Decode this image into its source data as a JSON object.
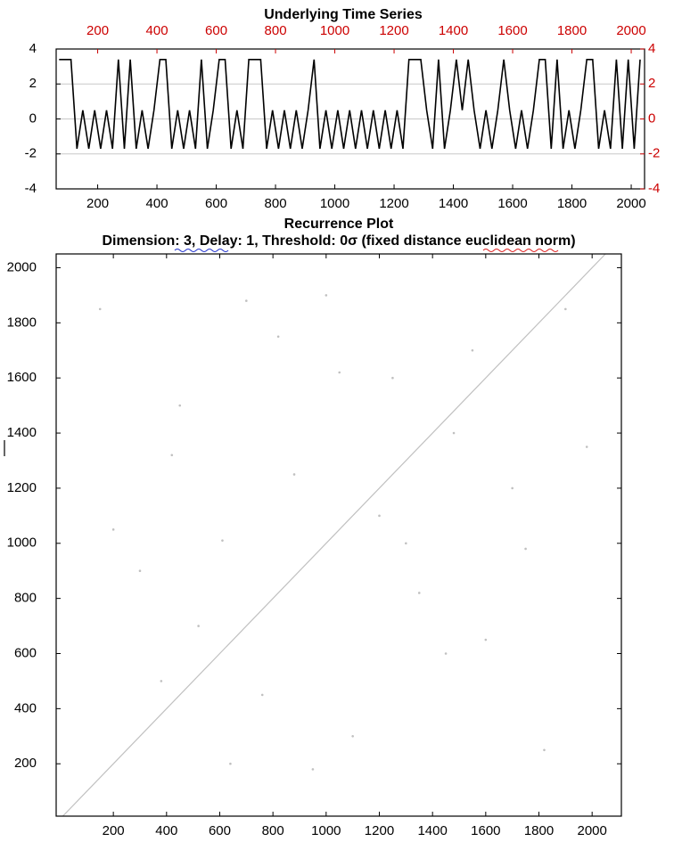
{
  "chart_data": [
    {
      "type": "line",
      "title": "Underlying Time Series",
      "color": "#000000",
      "grid": true,
      "grid_color": "#c8c8c8",
      "x": [
        70,
        90,
        110,
        130,
        150,
        170,
        190,
        210,
        230,
        250,
        270,
        290,
        310,
        330,
        350,
        370,
        390,
        410,
        430,
        450,
        470,
        490,
        510,
        530,
        550,
        570,
        590,
        610,
        630,
        650,
        670,
        690,
        710,
        730,
        750,
        770,
        790,
        810,
        830,
        850,
        870,
        890,
        910,
        930,
        950,
        970,
        990,
        1010,
        1030,
        1050,
        1070,
        1090,
        1110,
        1130,
        1150,
        1170,
        1190,
        1210,
        1230,
        1250,
        1270,
        1290,
        1310,
        1330,
        1350,
        1370,
        1390,
        1410,
        1430,
        1450,
        1470,
        1490,
        1510,
        1530,
        1550,
        1570,
        1590,
        1610,
        1630,
        1650,
        1670,
        1690,
        1710,
        1730,
        1750,
        1770,
        1790,
        1810,
        1830,
        1850,
        1870,
        1890,
        1910,
        1930,
        1950,
        1970,
        1990,
        2010,
        2030
      ],
      "values": [
        3.4,
        3.4,
        3.4,
        -1.7,
        0.5,
        -1.7,
        0.5,
        -1.7,
        0.5,
        -1.7,
        3.4,
        -1.7,
        3.4,
        -1.7,
        0.5,
        -1.7,
        0.5,
        3.4,
        3.4,
        -1.7,
        0.5,
        -1.7,
        0.5,
        -1.7,
        3.4,
        -1.7,
        0.5,
        3.4,
        3.4,
        -1.7,
        0.5,
        -1.7,
        3.4,
        3.4,
        3.4,
        -1.7,
        0.5,
        -1.7,
        0.5,
        -1.7,
        0.5,
        -1.7,
        0.5,
        3.4,
        -1.7,
        0.5,
        -1.7,
        0.5,
        -1.7,
        0.5,
        -1.7,
        0.5,
        -1.7,
        0.5,
        -1.7,
        0.5,
        -1.7,
        0.5,
        -1.7,
        3.4,
        3.4,
        3.4,
        0.5,
        -1.7,
        3.4,
        -1.7,
        0.5,
        3.4,
        0.5,
        3.4,
        0.5,
        -1.7,
        0.5,
        -1.7,
        0.5,
        3.4,
        0.5,
        -1.7,
        0.5,
        -1.7,
        0.5,
        3.4,
        3.4,
        -1.7,
        3.4,
        -1.7,
        0.5,
        -1.7,
        0.5,
        3.4,
        3.4,
        -1.7,
        0.5,
        -1.7,
        3.4,
        -1.7,
        3.4,
        -1.7,
        3.4
      ],
      "xlim": [
        60,
        2045
      ],
      "xticks": [
        200,
        400,
        600,
        800,
        1000,
        1200,
        1400,
        1600,
        1800,
        2000
      ],
      "x2lim": [
        60,
        2045
      ],
      "x2ticks": [
        200,
        400,
        600,
        800,
        1000,
        1200,
        1400,
        1600,
        1800,
        2000
      ],
      "ylim": [
        -4,
        4
      ],
      "yticks": [
        -4,
        -2,
        0,
        2,
        4
      ],
      "y2lim": [
        -4,
        4
      ],
      "y2ticks": [
        -4,
        -2,
        0,
        2,
        4
      ],
      "secondary_color": "#cc0000"
    },
    {
      "type": "recurrence",
      "title": "Recurrence Plot",
      "subtitle": "Dimension: 3,  Delay: 1,  Threshold: 0σ (fixed distance euclidean norm)",
      "color": "#c0c0c0",
      "diagonal": true,
      "x": [
        150,
        420,
        610,
        820,
        1000,
        1250,
        1480,
        1700,
        1900,
        300,
        520,
        760,
        1100,
        1350,
        1600,
        1820,
        200,
        450,
        700,
        950,
        1200,
        1450,
        1750,
        1980,
        380,
        880,
        1300,
        1550,
        1050,
        640
      ],
      "values": [
        1850,
        1320,
        1010,
        1750,
        1900,
        1600,
        1400,
        1200,
        1850,
        900,
        700,
        450,
        300,
        820,
        650,
        250,
        1050,
        1500,
        1880,
        180,
        1100,
        600,
        980,
        1350,
        500,
        1250,
        1000,
        1700,
        1620,
        200
      ],
      "xlim": [
        -15,
        2110
      ],
      "xticks": [
        200,
        400,
        600,
        800,
        1000,
        1200,
        1400,
        1600,
        1800,
        2000
      ],
      "ylim": [
        10,
        2050
      ],
      "yticks": [
        200,
        400,
        600,
        800,
        1000,
        1200,
        1400,
        1600,
        1800,
        2000
      ]
    }
  ]
}
